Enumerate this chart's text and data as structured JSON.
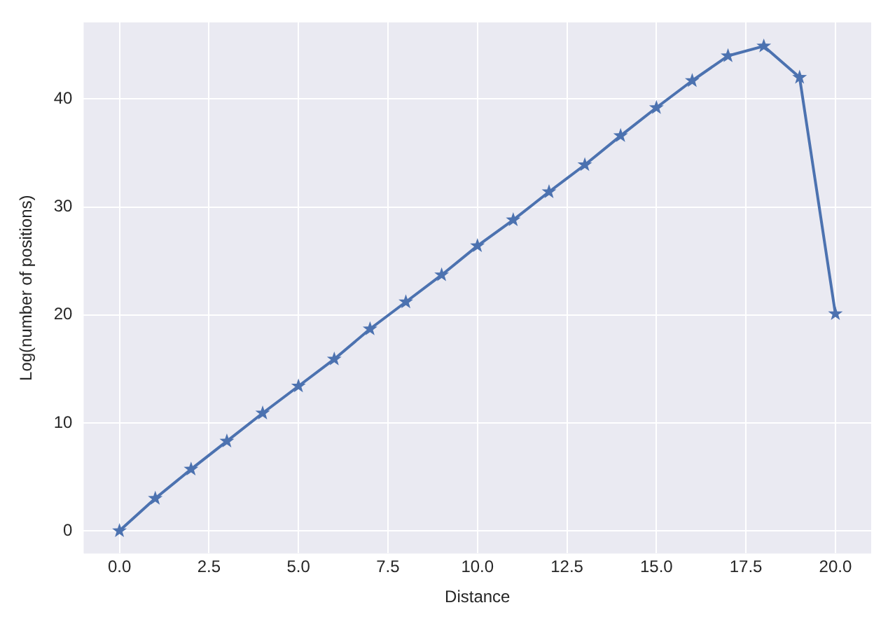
{
  "chart_data": {
    "type": "line",
    "xlabel": "Distance",
    "ylabel": "Log(number of positions)",
    "x": [
      0,
      1,
      2,
      3,
      4,
      5,
      6,
      7,
      8,
      9,
      10,
      11,
      12,
      13,
      14,
      15,
      16,
      17,
      18,
      19,
      20
    ],
    "series": [
      {
        "color": "#4c72b0",
        "values": [
          0.0,
          3.0,
          5.7,
          8.3,
          10.9,
          13.4,
          15.9,
          18.7,
          21.2,
          23.7,
          26.4,
          28.8,
          31.4,
          33.9,
          36.6,
          39.2,
          41.7,
          44.0,
          44.9,
          42.0,
          20.1
        ]
      }
    ],
    "xlim": [
      -1,
      21
    ],
    "xticks": [
      {
        "value": 0,
        "label": "0.0"
      },
      {
        "value": 2.5,
        "label": "2.5"
      },
      {
        "value": 5,
        "label": "5.0"
      },
      {
        "value": 7.5,
        "label": "7.5"
      },
      {
        "value": 10,
        "label": "10.0"
      },
      {
        "value": 12.5,
        "label": "12.5"
      },
      {
        "value": 15,
        "label": "15.0"
      },
      {
        "value": 17.5,
        "label": "17.5"
      },
      {
        "value": 20,
        "label": "20.0"
      }
    ],
    "ylim": [
      -2.1,
      47.1
    ],
    "yticks": [
      0,
      10,
      20,
      30,
      40
    ],
    "grid": true,
    "marker": "star",
    "line_style": "solid"
  }
}
